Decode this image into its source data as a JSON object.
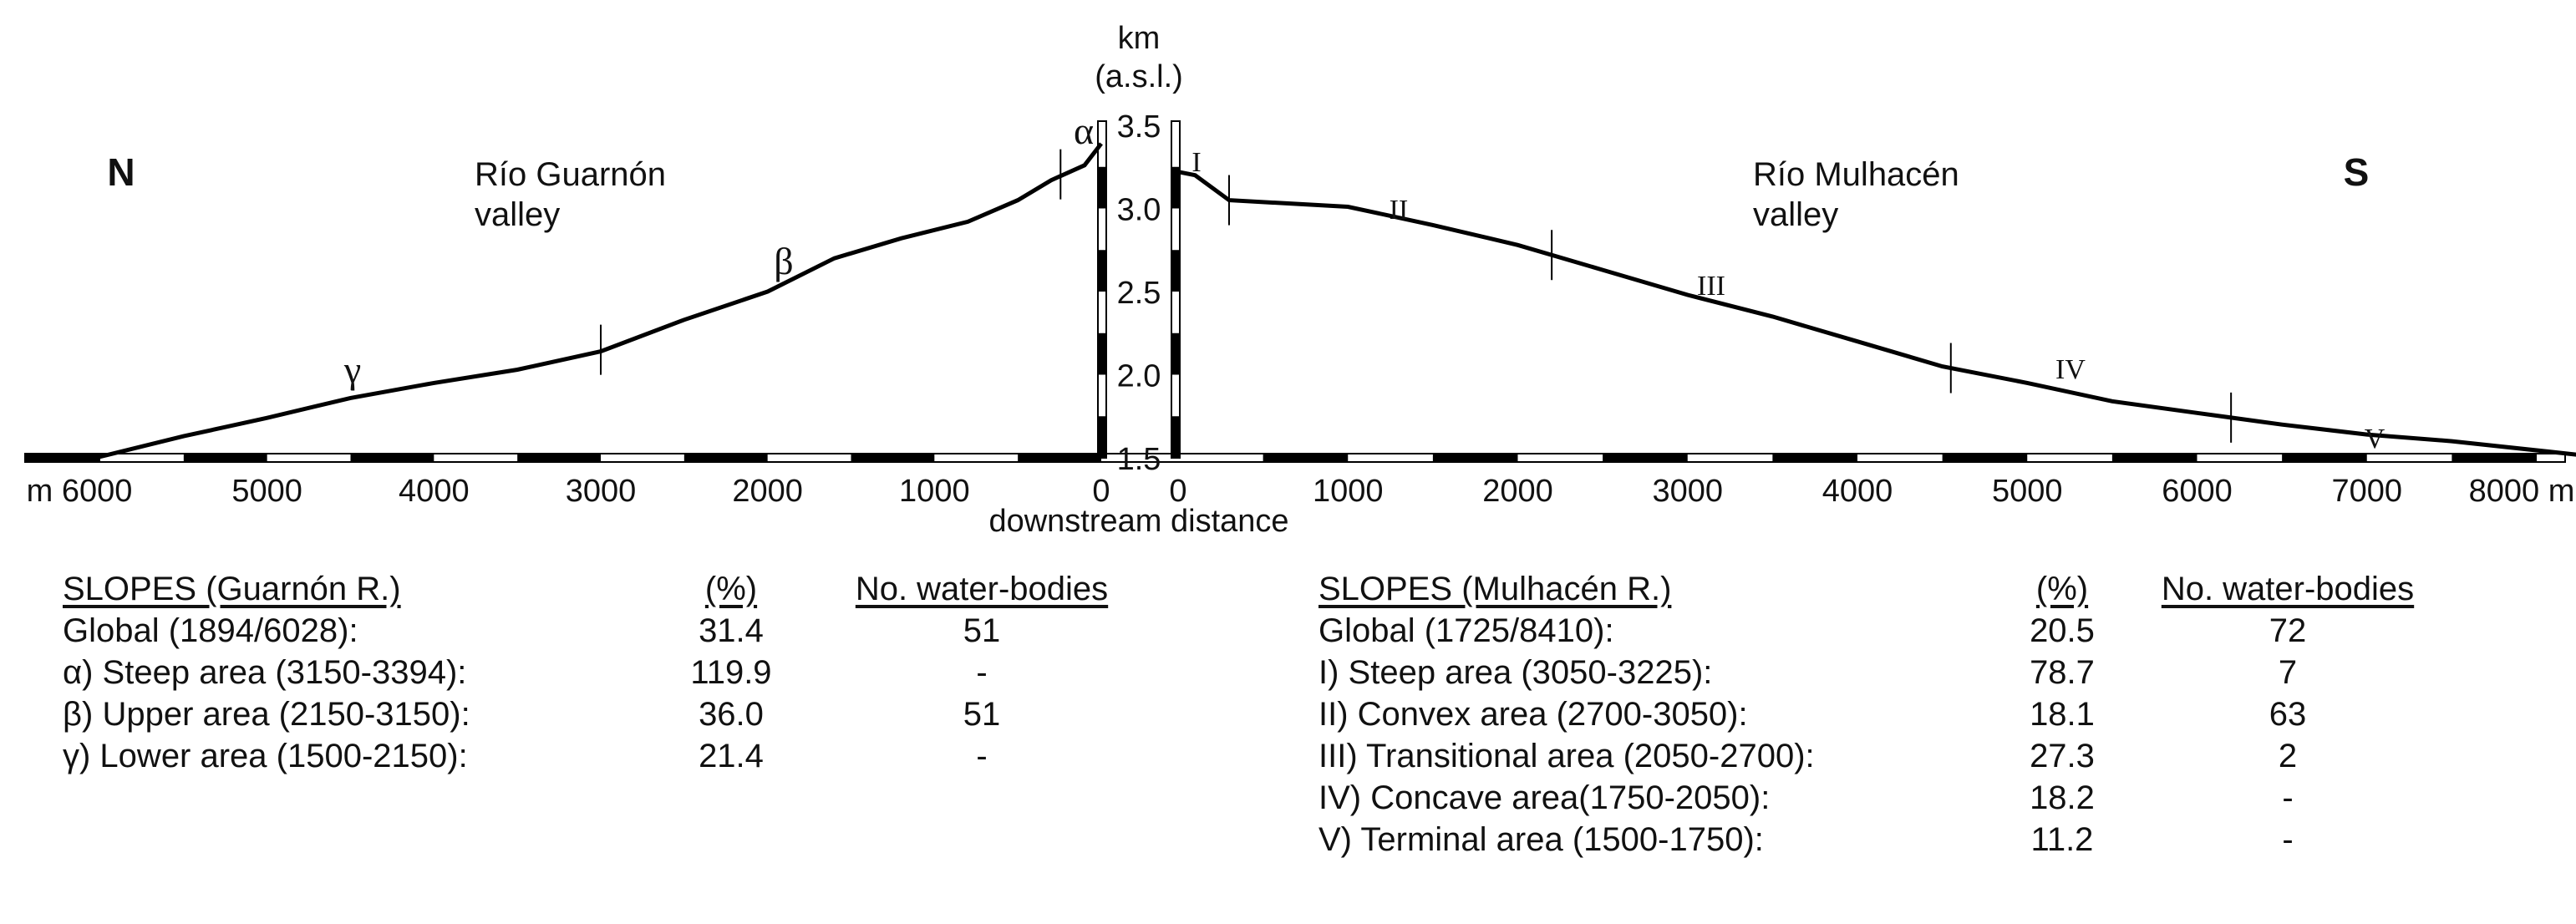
{
  "chart_data": {
    "type": "line",
    "title": "",
    "ylabel": "km\n(a.s.l.)",
    "xlabel": "downstream distance",
    "ylim": [
      1.5,
      3.5
    ],
    "y_ticks": [
      "3.5",
      "3.0",
      "2.5",
      "2.0",
      "1.5"
    ],
    "x_ticks_left": [
      "m 6000",
      "5000",
      "4000",
      "3000",
      "2000",
      "1000",
      "0"
    ],
    "x_ticks_right": [
      "0",
      "1000",
      "2000",
      "3000",
      "4000",
      "5000",
      "6000",
      "7000",
      "8000 m"
    ],
    "annotations": {
      "north": "N",
      "south": "S",
      "left_valley": [
        "Río Guarnón",
        "valley"
      ],
      "right_valley": [
        "Río Mulhacén",
        "valley"
      ],
      "left_zones": [
        "α",
        "β",
        "γ"
      ],
      "right_zones": [
        "I",
        "II",
        "III",
        "IV",
        "V"
      ]
    },
    "series": [
      {
        "side": "left",
        "x": [
          6028,
          5500,
          5000,
          4500,
          4000,
          3500,
          3000,
          2500,
          2000,
          1600,
          1200,
          800,
          500,
          300,
          100,
          0
        ],
        "y": [
          1.5,
          1.63,
          1.74,
          1.86,
          1.95,
          2.03,
          2.14,
          2.33,
          2.5,
          2.7,
          2.82,
          2.92,
          3.05,
          3.17,
          3.26,
          3.39
        ]
      },
      {
        "side": "right",
        "x": [
          0,
          100,
          300,
          1000,
          1500,
          2000,
          2500,
          3000,
          3500,
          4000,
          4500,
          5000,
          5500,
          6000,
          6500,
          7000,
          7500,
          8410
        ],
        "y": [
          3.22,
          3.2,
          3.05,
          3.01,
          2.9,
          2.78,
          2.63,
          2.48,
          2.35,
          2.2,
          2.05,
          1.95,
          1.84,
          1.77,
          1.7,
          1.64,
          1.6,
          1.5
        ]
      }
    ],
    "zone_boundaries_left": [
      244,
      3000
    ],
    "zone_boundaries_right": [
      300,
      2200,
      4550,
      6200
    ]
  },
  "tables": {
    "guarnon": {
      "header": {
        "name": "SLOPES (Guarnón R.)",
        "pct": "(%)",
        "wb": "No. water-bodies"
      },
      "rows": [
        {
          "name": "Global (1894/6028):",
          "pct": "31.4",
          "wb": "51"
        },
        {
          "name": "α) Steep area (3150-3394):",
          "pct": "119.9",
          "wb": "-"
        },
        {
          "name": "β) Upper  area (2150-3150):",
          "pct": "36.0",
          "wb": "51"
        },
        {
          "name": "γ)  Lower  area (1500-2150):",
          "pct": "21.4",
          "wb": "-"
        }
      ]
    },
    "mulhacen": {
      "header": {
        "name": "SLOPES (Mulhacén R.)",
        "pct": "(%)",
        "wb": "No. water-bodies"
      },
      "rows": [
        {
          "name": "Global (1725/8410):",
          "pct": "20.5",
          "wb": "72"
        },
        {
          "name": "I)  Steep area (3050-3225):",
          "pct": "78.7",
          "wb": "7"
        },
        {
          "name": "II) Convex area (2700-3050):",
          "pct": "18.1",
          "wb": "63"
        },
        {
          "name": "III) Transitional area (2050-2700):",
          "pct": "27.3",
          "wb": "2"
        },
        {
          "name": "IV) Concave area(1750-2050):",
          "pct": "18.2",
          "wb": "-"
        },
        {
          "name": "V)  Terminal area (1500-1750):",
          "pct": "11.2",
          "wb": "-"
        }
      ]
    }
  },
  "colors": {
    "line": "#000000",
    "axis_dark": "#000000",
    "axis_light": "#ffffff"
  }
}
